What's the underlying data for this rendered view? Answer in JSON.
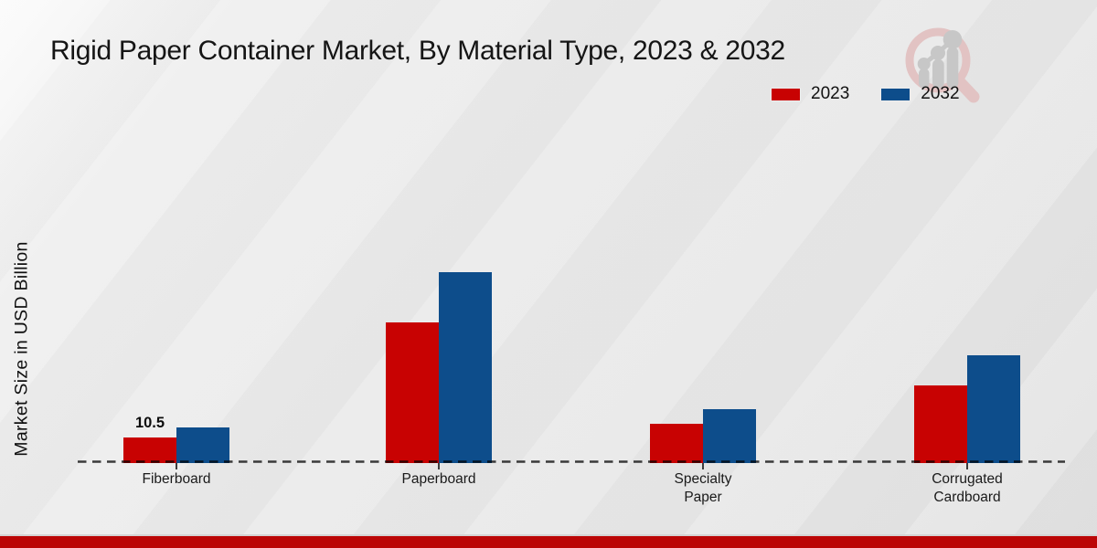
{
  "title": "Rigid Paper Container Market, By Material Type, 2023 & 2032",
  "y_axis_label": "Market Size in USD Billion",
  "brand_watermark_icon": "magnifier-bar-chart-icon",
  "colors": {
    "series_2023": "#c80202",
    "series_2032": "#0d4d8b",
    "footer_bar": "#bb0606",
    "watermark_ring": "#e2c3c3",
    "watermark_bars": "#c7c7c7"
  },
  "footer": {},
  "chart_data": {
    "type": "bar",
    "title": "Rigid Paper Container Market, By Material Type, 2023 & 2032",
    "xlabel": "",
    "ylabel": "Market Size in USD Billion",
    "categories": [
      "Fiberboard",
      "Paperboard",
      "Specialty Paper",
      "Corrugated Cardboard"
    ],
    "series": [
      {
        "name": "2023",
        "color": "#c80202",
        "values": [
          10.5,
          57.0,
          16.0,
          31.5
        ]
      },
      {
        "name": "2032",
        "color": "#0d4d8b",
        "values": [
          14.5,
          77.0,
          21.8,
          43.5
        ]
      }
    ],
    "ylim": [
      0,
      80
    ],
    "grid": false,
    "axis_style": "dashed-baseline-only",
    "legend_position": "top-right",
    "annotations": [
      {
        "category_index": 0,
        "series_index": 0,
        "text": "10.5"
      }
    ]
  }
}
